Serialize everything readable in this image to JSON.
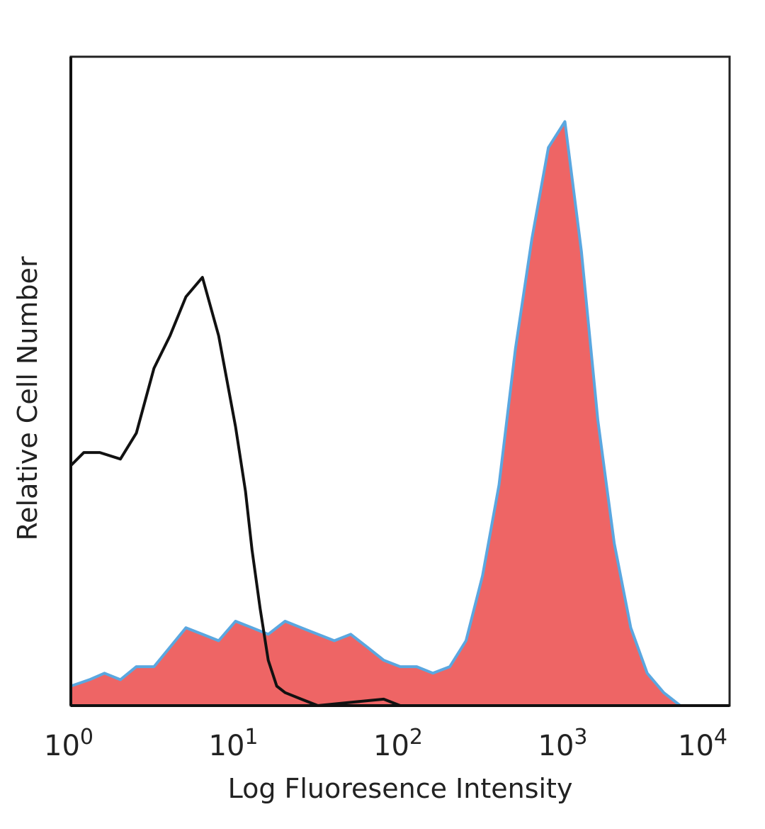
{
  "chart_data": {
    "type": "area",
    "title": "",
    "xlabel": "Log Fluoresence Intensity",
    "ylabel": "Relative Cell Number",
    "x_scale": "log",
    "xlim": [
      1,
      10000
    ],
    "ylim": [
      0,
      100
    ],
    "grid": false,
    "x_ticks": [
      {
        "base": "10",
        "exp": "0"
      },
      {
        "base": "10",
        "exp": "1"
      },
      {
        "base": "10",
        "exp": "2"
      },
      {
        "base": "10",
        "exp": "3"
      },
      {
        "base": "10",
        "exp": "4"
      }
    ],
    "x_tick_values": [
      1,
      10,
      100,
      1000,
      10000
    ],
    "colors": {
      "filled_fill": "#ee6565",
      "filled_edge": "#5aa7e0",
      "control_line": "#111111"
    },
    "series": [
      {
        "style": "filled",
        "x": [
          1.0,
          1.3,
          1.6,
          2.0,
          2.5,
          3.2,
          4.0,
          5.0,
          6.3,
          7.9,
          10.0,
          12.6,
          15.8,
          20.0,
          25.1,
          31.6,
          39.8,
          50.1,
          63.1,
          79.4,
          100,
          126,
          158,
          200,
          251,
          316,
          398,
          501,
          631,
          794,
          1000,
          1259,
          1585,
          1995,
          2512,
          3162,
          3981,
          5012
        ],
        "y": [
          3,
          4,
          5,
          4,
          6,
          6,
          9,
          12,
          11,
          10,
          13,
          12,
          11,
          13,
          12,
          11,
          10,
          11,
          9,
          7,
          6,
          6,
          5,
          6,
          10,
          20,
          34,
          55,
          72,
          86,
          90,
          70,
          44,
          25,
          12,
          5,
          2,
          0
        ]
      },
      {
        "style": "line",
        "x": [
          1.0,
          1.2,
          1.5,
          2.0,
          2.5,
          3.2,
          4.0,
          5.0,
          6.3,
          7.9,
          10.0,
          11.5,
          12.6,
          14.1,
          15.8,
          17.8,
          20.0,
          25.1,
          31.6,
          50.1,
          79.4,
          100,
          126
        ],
        "y": [
          37,
          39,
          39,
          38,
          42,
          52,
          57,
          63,
          66,
          57,
          43,
          33,
          24,
          15,
          7,
          3,
          2,
          1,
          0,
          0.5,
          1,
          0,
          0
        ]
      }
    ]
  }
}
